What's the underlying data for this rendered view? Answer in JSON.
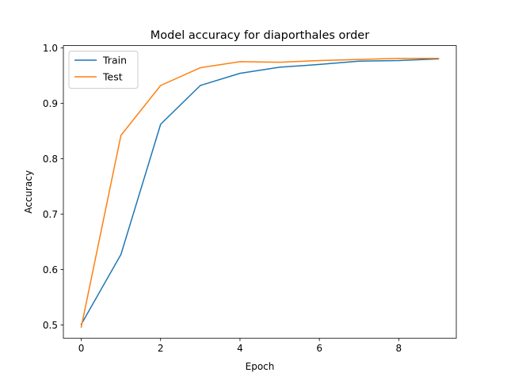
{
  "chart_data": {
    "type": "line",
    "title": "Model accuracy for diaporthales order",
    "xlabel": "Epoch",
    "ylabel": "Accuracy",
    "x": [
      0,
      1,
      2,
      3,
      4,
      5,
      6,
      7,
      8,
      9
    ],
    "xlim": [
      -0.45,
      9.45
    ],
    "ylim": [
      0.476,
      1.004
    ],
    "xticks": [
      0,
      2,
      4,
      6,
      8
    ],
    "xtick_labels": [
      "0",
      "2",
      "4",
      "6",
      "8"
    ],
    "yticks": [
      0.5,
      0.6,
      0.7,
      0.8,
      0.9,
      1.0
    ],
    "ytick_labels": [
      "0.5",
      "0.6",
      "0.7",
      "0.8",
      "0.9",
      "1.0"
    ],
    "grid": false,
    "legend_position": "top-left",
    "series": [
      {
        "name": "Train",
        "color": "#1f77b4",
        "values": [
          0.501,
          0.627,
          0.862,
          0.932,
          0.954,
          0.965,
          0.97,
          0.976,
          0.977,
          0.98
        ]
      },
      {
        "name": "Test",
        "color": "#ff7f0e",
        "values": [
          0.496,
          0.842,
          0.932,
          0.964,
          0.975,
          0.974,
          0.977,
          0.979,
          0.981,
          0.981
        ]
      }
    ]
  }
}
